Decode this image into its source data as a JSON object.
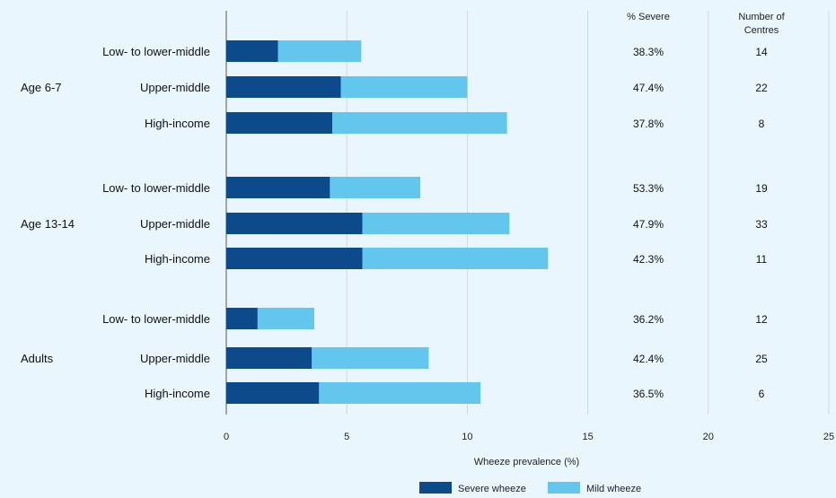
{
  "chart_data": {
    "type": "bar",
    "stacked": true,
    "orientation": "horizontal",
    "title": "",
    "xlabel": "Wheeze prevalence (%)",
    "ylabel": "",
    "xlim": [
      0,
      25
    ],
    "xticks": [
      0,
      5,
      10,
      15,
      20,
      25
    ],
    "grid": "vertical",
    "colors": {
      "severe": "#0d4a8c",
      "mild": "#63c6ec",
      "grid": "#d0d8de",
      "axis": "#555555"
    },
    "col_headers": {
      "pct_severe": "% Severe",
      "centres_line1": "Number of",
      "centres_line2": "Centres"
    },
    "groups": [
      {
        "label": "Age 6-7",
        "rows": [
          {
            "category": "Low- to lower-middle",
            "severe": 2.15,
            "mild": 3.45,
            "pct_severe": "38.3%",
            "centres": "14"
          },
          {
            "category": "Upper-middle",
            "severe": 4.75,
            "mild": 5.25,
            "pct_severe": "47.4%",
            "centres": "22"
          },
          {
            "category": "High-income",
            "severe": 4.4,
            "mild": 7.25,
            "pct_severe": "37.8%",
            "centres": "8"
          }
        ]
      },
      {
        "label": "Age 13-14",
        "rows": [
          {
            "category": "Low- to lower-middle",
            "severe": 4.3,
            "mild": 3.75,
            "pct_severe": "53.3%",
            "centres": "19"
          },
          {
            "category": "Upper-middle",
            "severe": 5.65,
            "mild": 6.1,
            "pct_severe": "47.9%",
            "centres": "33"
          },
          {
            "category": "High-income",
            "severe": 5.65,
            "mild": 7.7,
            "pct_severe": "42.3%",
            "centres": "11"
          }
        ]
      },
      {
        "label": "Adults",
        "rows": [
          {
            "category": "Low- to lower-middle",
            "severe": 1.3,
            "mild": 2.35,
            "pct_severe": "36.2%",
            "centres": "12"
          },
          {
            "category": "Upper-middle",
            "severe": 3.55,
            "mild": 4.85,
            "pct_severe": "42.4%",
            "centres": "25"
          },
          {
            "category": "High-income",
            "severe": 3.85,
            "mild": 6.7,
            "pct_severe": "36.5%",
            "centres": "6"
          }
        ]
      }
    ],
    "series": [
      {
        "name": "Severe wheeze",
        "key": "severe"
      },
      {
        "name": "Mild wheeze",
        "key": "mild"
      }
    ],
    "legend_position": "bottom-center"
  }
}
